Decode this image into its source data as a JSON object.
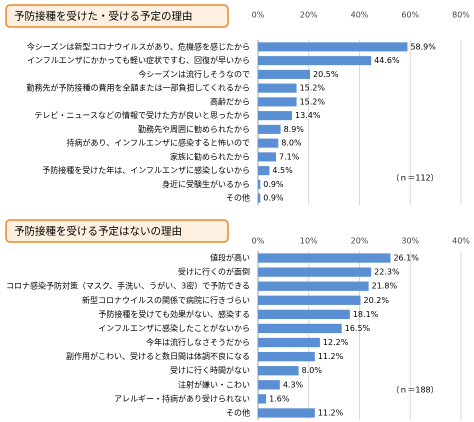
{
  "chart_data": [
    {
      "type": "bar",
      "orientation": "horizontal",
      "title": "予防接種を受けた・受ける予定の理由",
      "categories": [
        "今シーズンは新型コロナウイルスがあり、危機感を感じたから",
        "インフルエンザにかかっても軽い症状ですむ、回復が早いから",
        "今シーズンは流行しそうなので",
        "勤務先が予防接種の費用を全額または一部負担してくれるから",
        "高齢だから",
        "テレビ・ニュースなどの情報で受けた方が良いと思ったから",
        "勤務先や周囲に勧められたから",
        "持病があり、インフルエンザに感染すると怖いので",
        "家族に勧められたから",
        "予防接種を受けた年は、インフルエンザに感染しないから",
        "身近に受験生がいるから",
        "その他"
      ],
      "values": [
        58.9,
        44.6,
        20.5,
        15.2,
        15.2,
        13.4,
        8.9,
        8.0,
        7.1,
        4.5,
        0.9,
        0.9
      ],
      "value_labels": [
        "58.9%",
        "44.6%",
        "20.5%",
        "15.2%",
        "15.2%",
        "13.4%",
        "8.9%",
        "8.0%",
        "7.1%",
        "4.5%",
        "0.9%",
        "0.9%"
      ],
      "color": "#5b8fd3",
      "xlim": [
        0,
        80
      ],
      "xticks": [
        {
          "value": 0,
          "label": "0%"
        },
        {
          "value": 20,
          "label": "20%"
        },
        {
          "value": 40,
          "label": "40%"
        },
        {
          "value": 60,
          "label": "60%"
        },
        {
          "value": 80,
          "label": "80%"
        }
      ],
      "grid": true,
      "annotation": "（ｎ＝112）"
    },
    {
      "type": "bar",
      "orientation": "horizontal",
      "title": "予防接種を受ける予定はないの理由",
      "categories": [
        "値段が高い",
        "受けに行くのが面倒",
        "コロナ感染予防対策（マスク、手洗い、うがい、3密）で予防できる",
        "新型コロナウイルスの関係で病院に行きづらい",
        "予防接種を受けても効果がない、感染する",
        "インフルエンザに感染したことがないから",
        "今年は流行しなさそうだから",
        "副作用がこわい、受けると数日間は体調不良になる",
        "受けに行く時間がない",
        "注射が嫌い・こわい",
        "アレルギー・持病があり受けられない",
        "その他"
      ],
      "values": [
        26.1,
        22.3,
        21.8,
        20.2,
        18.1,
        16.5,
        12.2,
        11.2,
        8.0,
        4.3,
        1.6,
        11.2
      ],
      "value_labels": [
        "26.1%",
        "22.3%",
        "21.8%",
        "20.2%",
        "18.1%",
        "16.5%",
        "12.2%",
        "11.2%",
        "8.0%",
        "4.3%",
        "1.6%",
        "11.2%"
      ],
      "color": "#5b8fd3",
      "xlim": [
        0,
        40
      ],
      "xticks": [
        {
          "value": 0,
          "label": "0%"
        },
        {
          "value": 10,
          "label": "10%"
        },
        {
          "value": 20,
          "label": "20%"
        },
        {
          "value": 30,
          "label": "30%"
        },
        {
          "value": 40,
          "label": "40%"
        }
      ],
      "grid": true,
      "annotation": "（ｎ＝188）"
    }
  ]
}
